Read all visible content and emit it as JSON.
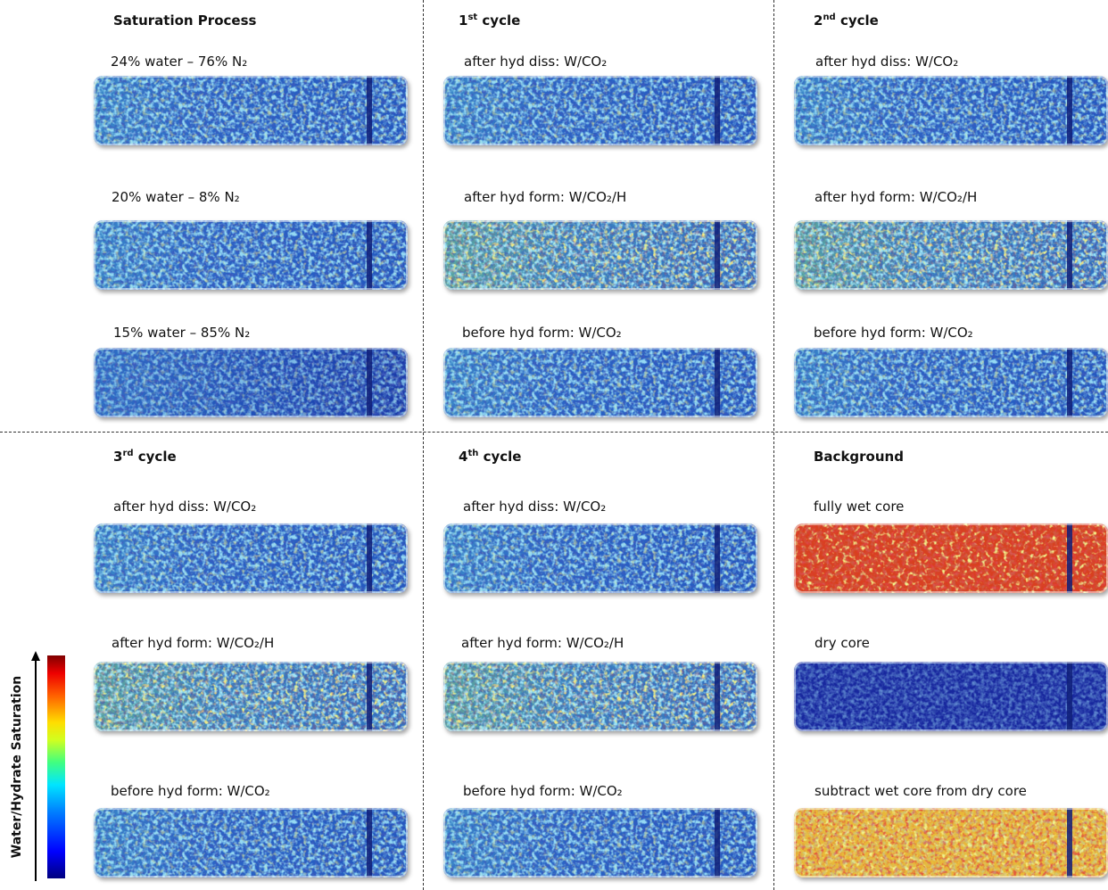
{
  "sections": [
    {
      "title": {
        "text": "Saturation Process"
      },
      "panels": [
        "24% water – 76% N₂",
        "20% water – 8% N₂",
        "15% water – 85% N₂"
      ]
    },
    {
      "title": {
        "number": "1",
        "suffix": "st",
        "text": "cycle"
      },
      "panels": [
        "after hyd diss: W/CO₂",
        "after hyd form: W/CO₂/H",
        "before hyd form: W/CO₂"
      ]
    },
    {
      "title": {
        "number": "2",
        "suffix": "nd",
        "text": "cycle"
      },
      "panels": [
        "after hyd diss: W/CO₂",
        "after hyd form: W/CO₂/H",
        "before hyd form: W/CO₂"
      ]
    },
    {
      "title": {
        "number": "3",
        "suffix": "rd",
        "text": "cycle"
      },
      "panels": [
        "after hyd diss: W/CO₂",
        "after hyd form: W/CO₂/H",
        "before hyd form: W/CO₂"
      ]
    },
    {
      "title": {
        "number": "4",
        "suffix": "th",
        "text": "cycle"
      },
      "panels": [
        "after hyd diss: W/CO₂",
        "after hyd form: W/CO₂/H",
        "before hyd form: W/CO₂"
      ]
    },
    {
      "title": {
        "text": "Background"
      },
      "panels": [
        "fully wet core",
        "dry core",
        "subtract wet core from dry core"
      ]
    }
  ],
  "colorbar": {
    "label": "Water/Hydrate Saturation"
  }
}
